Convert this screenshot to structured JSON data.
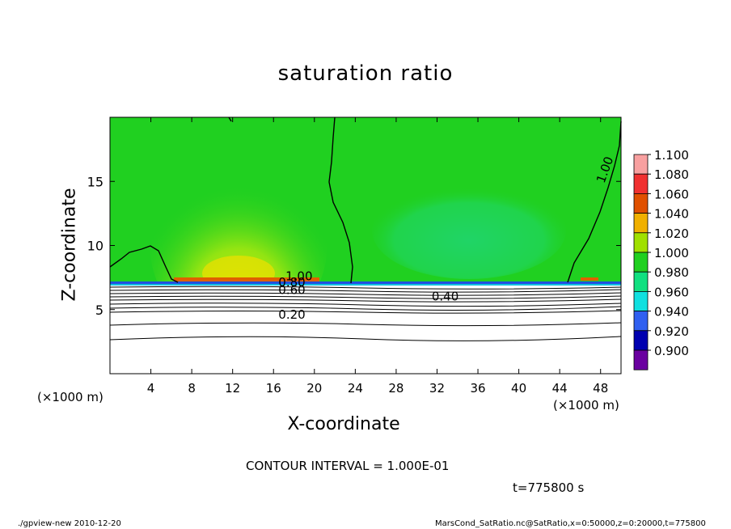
{
  "chart_data": {
    "type": "heatmap",
    "title": "saturation ratio",
    "xlabel": "X-coordinate",
    "ylabel": "Z-coordinate",
    "x_unit": "(×1000 m)",
    "x_ticks": [
      4,
      8,
      12,
      16,
      20,
      24,
      28,
      32,
      36,
      40,
      44,
      48
    ],
    "y_ticks": [
      5,
      10,
      15
    ],
    "xlim": [
      0,
      50
    ],
    "ylim": [
      0,
      20
    ],
    "colorbar": {
      "levels": [
        "1.100",
        "1.080",
        "1.060",
        "1.040",
        "1.020",
        "1.000",
        "0.980",
        "0.960",
        "0.940",
        "0.920",
        "0.900"
      ],
      "colors": [
        "#f8a0a0",
        "#f03030",
        "#e05000",
        "#f0b000",
        "#a0e000",
        "#20d020",
        "#10e080",
        "#10e0e0",
        "#3060f0",
        "#0000b0",
        "#6a00a0"
      ]
    },
    "contour_labels": [
      {
        "text": "1.00",
        "x": 48.8,
        "z": 15.8
      },
      {
        "text": "1.00",
        "x": 18.5,
        "z": 7.3
      },
      {
        "text": "0.80",
        "x": 17.8,
        "z": 6.8
      },
      {
        "text": "0.60",
        "x": 17.8,
        "z": 6.2
      },
      {
        "text": "0.40",
        "x": 32.8,
        "z": 5.7
      },
      {
        "text": "0.20",
        "x": 17.8,
        "z": 4.3
      }
    ],
    "contour_interval_text": "CONTOUR INTERVAL = 1.000E-01",
    "time_text": "t=775800  s"
  },
  "footer": {
    "left": "./gpview-new   2010-12-20",
    "right": "MarsCond_SatRatio.nc@SatRatio,x=0:50000,z=0:20000,t=775800"
  }
}
